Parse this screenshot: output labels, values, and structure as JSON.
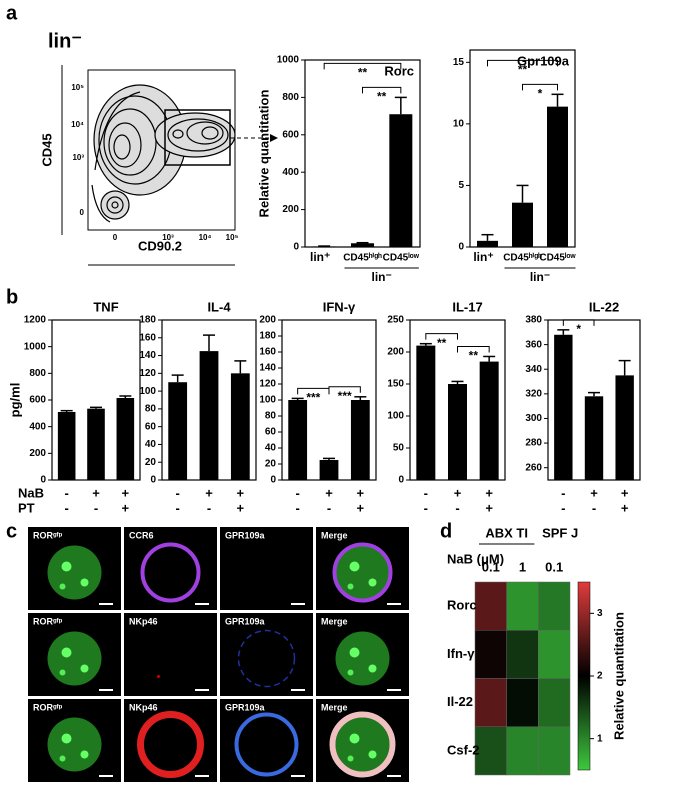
{
  "panel_labels": [
    "a",
    "b",
    "c",
    "d"
  ],
  "flow_plot": {
    "gate_label": "lin⁻",
    "y_label": "CD45",
    "x_label": "CD90.2",
    "yticks": [
      "10⁵",
      "10⁴",
      "10³",
      "0"
    ],
    "xticks": [
      "0",
      "10³",
      "10⁴",
      "10⁵"
    ]
  },
  "treatments": [
    {
      "name": "NaB",
      "marks": [
        "-",
        "+",
        "+"
      ]
    },
    {
      "name": "PT",
      "marks": [
        "-",
        "-",
        "+"
      ]
    }
  ],
  "panel_c": {
    "rows": [
      [
        "RORᵍᶠᵖ",
        "CCR6",
        "GPR109a",
        "Merge"
      ],
      [
        "RORᵍᶠᵖ",
        "NKp46",
        "GPR109a",
        "Merge"
      ],
      [
        "RORᵍᶠᵖ",
        "NKp46",
        "GPR109a",
        "Merge"
      ]
    ]
  },
  "chart_data": [
    {
      "type": "bar",
      "title": "Rorc",
      "y_label": "Relative quantitation",
      "categories": [
        "lin⁺",
        "CD45ʰⁱᵍʰ",
        "CD45ˡᵒʷ"
      ],
      "group_label": "lin⁻",
      "values": [
        3,
        20,
        710
      ],
      "errors": [
        2,
        3,
        90
      ],
      "color": "#000000",
      "ylim": [
        0,
        1000
      ],
      "yticks": [
        0,
        200,
        400,
        600,
        800,
        1000
      ],
      "significance": [
        "**",
        "**"
      ]
    },
    {
      "type": "bar",
      "title": "Gpr109a",
      "categories": [
        "lin⁺",
        "CD45ʰⁱᵍʰ",
        "CD45ˡᵒʷ"
      ],
      "group_label": "lin⁻",
      "values": [
        0.5,
        3.6,
        11.4
      ],
      "errors": [
        0.5,
        1.4,
        1.0
      ],
      "color": "#000000",
      "ylim": [
        0,
        16
      ],
      "yticks": [
        0,
        5,
        10,
        15
      ],
      "significance": [
        "**",
        "*"
      ]
    },
    {
      "type": "bar",
      "title": "TNF",
      "y_label": "pg/ml",
      "values": [
        510,
        535,
        615
      ],
      "errors": [
        10,
        10,
        15
      ],
      "color": "#000000",
      "ylim": [
        0,
        1200
      ],
      "yticks": [
        0,
        200,
        400,
        600,
        800,
        1000,
        1200
      ]
    },
    {
      "type": "bar",
      "title": "IL-4",
      "values": [
        110,
        145,
        120
      ],
      "errors": [
        8,
        18,
        14
      ],
      "color": "#000000",
      "ylim": [
        0,
        180
      ],
      "yticks": [
        0,
        20,
        40,
        60,
        80,
        100,
        120,
        140,
        160,
        180
      ]
    },
    {
      "type": "bar",
      "title": "IFN-γ",
      "values": [
        100,
        25,
        100
      ],
      "errors": [
        2,
        2,
        4
      ],
      "color": "#000000",
      "ylim": [
        0,
        200
      ],
      "yticks": [
        0,
        20,
        40,
        60,
        80,
        100,
        120,
        140,
        160,
        180,
        200
      ],
      "significance": [
        "***",
        "***"
      ]
    },
    {
      "type": "bar",
      "title": "IL-17",
      "values": [
        210,
        150,
        185
      ],
      "errors": [
        3,
        4,
        8
      ],
      "color": "#000000",
      "ylim": [
        0,
        250
      ],
      "yticks": [
        0,
        50,
        100,
        150,
        200,
        250
      ],
      "significance": [
        "**",
        "**"
      ]
    },
    {
      "type": "bar",
      "title": "IL-22",
      "values": [
        368,
        318,
        335
      ],
      "errors": [
        4,
        3,
        12
      ],
      "color": "#000000",
      "ylim": [
        250,
        380
      ],
      "yticks": [
        260,
        280,
        300,
        320,
        340,
        360,
        380
      ],
      "significance": [
        "*"
      ]
    },
    {
      "type": "heatmap",
      "column_groups": [
        "ABX TI",
        "SPF J"
      ],
      "column_label": "NaB (μM)",
      "columns": [
        0.1,
        1,
        0.1
      ],
      "rows": [
        "Rorc",
        "Ifn-γ",
        "Il-22",
        "Csf-2"
      ],
      "values": [
        [
          2.6,
          0.9,
          1.1
        ],
        [
          2.1,
          1.6,
          0.9
        ],
        [
          2.6,
          1.9,
          1.2
        ],
        [
          1.4,
          1.0,
          1.0
        ]
      ],
      "colorbar_label": "Relative quantitation",
      "colorbar_lim": [
        0.5,
        3.5
      ],
      "colorbar_ticks": [
        1,
        2,
        3
      ]
    }
  ]
}
